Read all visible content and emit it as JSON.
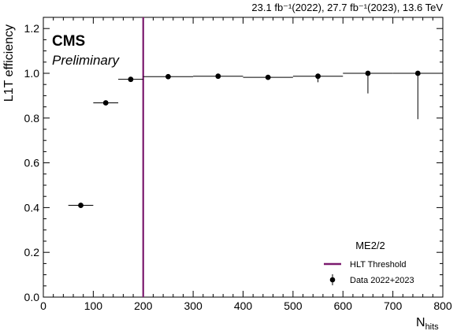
{
  "chart_data": {
    "type": "scatter",
    "lumi_text": "23.1 fb⁻¹(2022), 27.7 fb⁻¹(2023), 13.6 TeV",
    "experiment": "CMS",
    "status": "Preliminary",
    "xlabel": "N",
    "xlabel_sub": "hits",
    "ylabel": "L1T efficiency",
    "xlim": [
      0,
      800
    ],
    "ylim": [
      0,
      1.25
    ],
    "xticks": [
      0,
      100,
      200,
      300,
      400,
      500,
      600,
      700,
      800
    ],
    "yticks": [
      0.0,
      0.2,
      0.4,
      0.6,
      0.8,
      1.0,
      1.2
    ],
    "legend": {
      "title": "ME2/2",
      "position": "bottom-right",
      "entries": [
        {
          "label": "HLT Threshold",
          "kind": "line",
          "color": "#7b1a6e"
        },
        {
          "label": "Data 2022+2023",
          "kind": "marker",
          "color": "#000000"
        }
      ]
    },
    "threshold": {
      "x": 200,
      "color": "#7b1a6e"
    },
    "series": [
      {
        "name": "Data 2022+2023",
        "points": [
          {
            "x": 75,
            "xlo": 50,
            "xhi": 100,
            "y": 0.41,
            "ylo": 0.405,
            "yhi": 0.413
          },
          {
            "x": 125,
            "xlo": 100,
            "xhi": 150,
            "y": 0.868,
            "ylo": 0.864,
            "yhi": 0.872
          },
          {
            "x": 175,
            "xlo": 150,
            "xhi": 200,
            "y": 0.973,
            "ylo": 0.97,
            "yhi": 0.976
          },
          {
            "x": 250,
            "xlo": 200,
            "xhi": 300,
            "y": 0.985,
            "ylo": 0.982,
            "yhi": 0.988
          },
          {
            "x": 350,
            "xlo": 300,
            "xhi": 400,
            "y": 0.987,
            "ylo": 0.984,
            "yhi": 0.99
          },
          {
            "x": 450,
            "xlo": 400,
            "xhi": 500,
            "y": 0.982,
            "ylo": 0.976,
            "yhi": 0.988
          },
          {
            "x": 550,
            "xlo": 500,
            "xhi": 600,
            "y": 0.987,
            "ylo": 0.96,
            "yhi": 0.997
          },
          {
            "x": 650,
            "xlo": 600,
            "xhi": 700,
            "y": 1.0,
            "ylo": 0.91,
            "yhi": 1.0
          },
          {
            "x": 750,
            "xlo": 700,
            "xhi": 800,
            "y": 1.0,
            "ylo": 0.795,
            "yhi": 1.0
          }
        ]
      }
    ]
  }
}
